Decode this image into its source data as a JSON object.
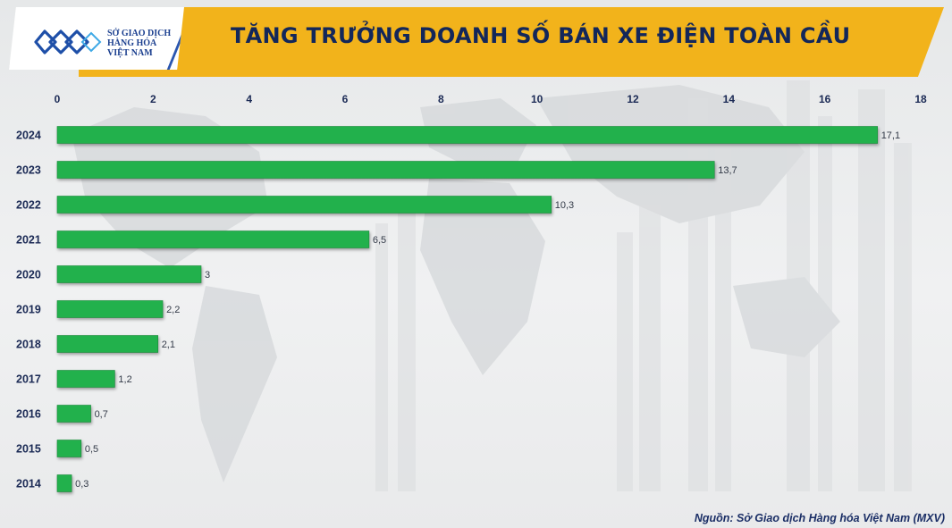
{
  "header": {
    "logo_lines": [
      "SỞ GIAO DỊCH",
      "HÀNG HÓA",
      "VIỆT NAM"
    ],
    "title": "TĂNG TRƯỞNG DOANH SỐ BÁN XE ĐIỆN TOÀN CẦU"
  },
  "source": "Nguồn: Sở Giao dịch Hàng hóa Việt Nam (MXV)",
  "colors": {
    "header_band": "#f2b31b",
    "title_text": "#13275a",
    "bar_fill": "#22b14c",
    "axis_text": "#1b2a55",
    "logo_blue": "#1b3f8f"
  },
  "chart_data": {
    "type": "bar",
    "orientation": "horizontal",
    "title": "TĂNG TRƯỞNG DOANH SỐ BÁN XE ĐIỆN TOÀN CẦU",
    "xlabel": "",
    "ylabel": "",
    "xlim": [
      0,
      18
    ],
    "x_ticks": [
      "0",
      "2",
      "4",
      "6",
      "8",
      "10",
      "12",
      "14",
      "16",
      "18"
    ],
    "x_axis_position": "top",
    "grid": false,
    "categories": [
      "2024",
      "2023",
      "2022",
      "2021",
      "2020",
      "2019",
      "2018",
      "2017",
      "2016",
      "2015",
      "2014"
    ],
    "values": [
      17.1,
      13.7,
      10.3,
      6.5,
      3,
      2.2,
      2.1,
      1.2,
      0.7,
      0.5,
      0.3
    ],
    "value_labels": [
      "17,1",
      "13,7",
      "10,3",
      "6,5",
      "3",
      "2,2",
      "2,1",
      "1,2",
      "0,7",
      "0,5",
      "0,3"
    ]
  }
}
